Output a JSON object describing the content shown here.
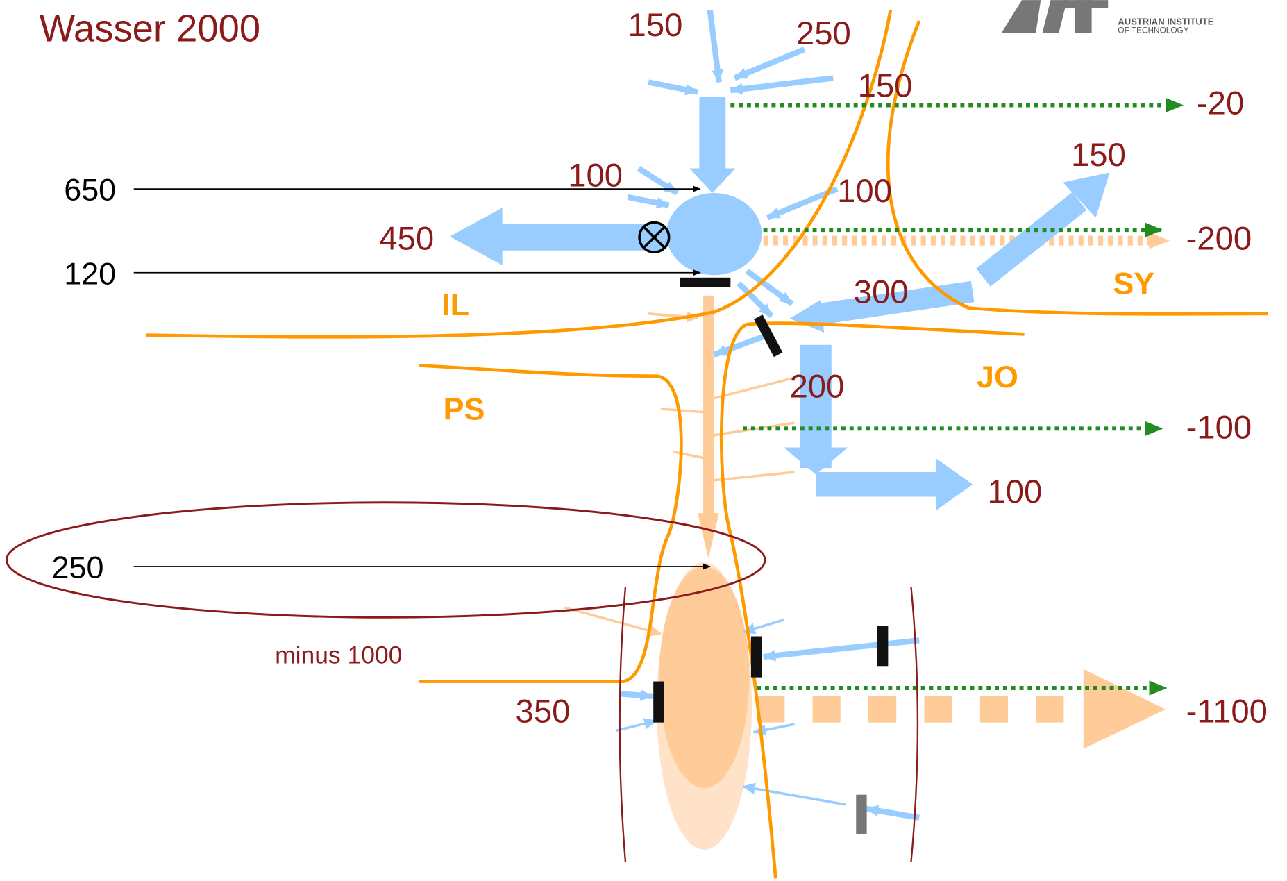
{
  "title": "Wasser 2000",
  "logo": {
    "line1": "AUSTRIAN INSTITUTE",
    "line2": "OF TECHNOLOGY"
  },
  "flows": [
    "150",
    "250",
    "150",
    "-20",
    "100",
    "100",
    "150",
    "450",
    "-200",
    "300",
    "200",
    "-100",
    "100",
    "350",
    "-1100"
  ],
  "inputs": [
    "650",
    "120",
    "250"
  ],
  "regions": [
    "IL",
    "PS",
    "SY",
    "JO"
  ],
  "note": "minus 1000"
}
